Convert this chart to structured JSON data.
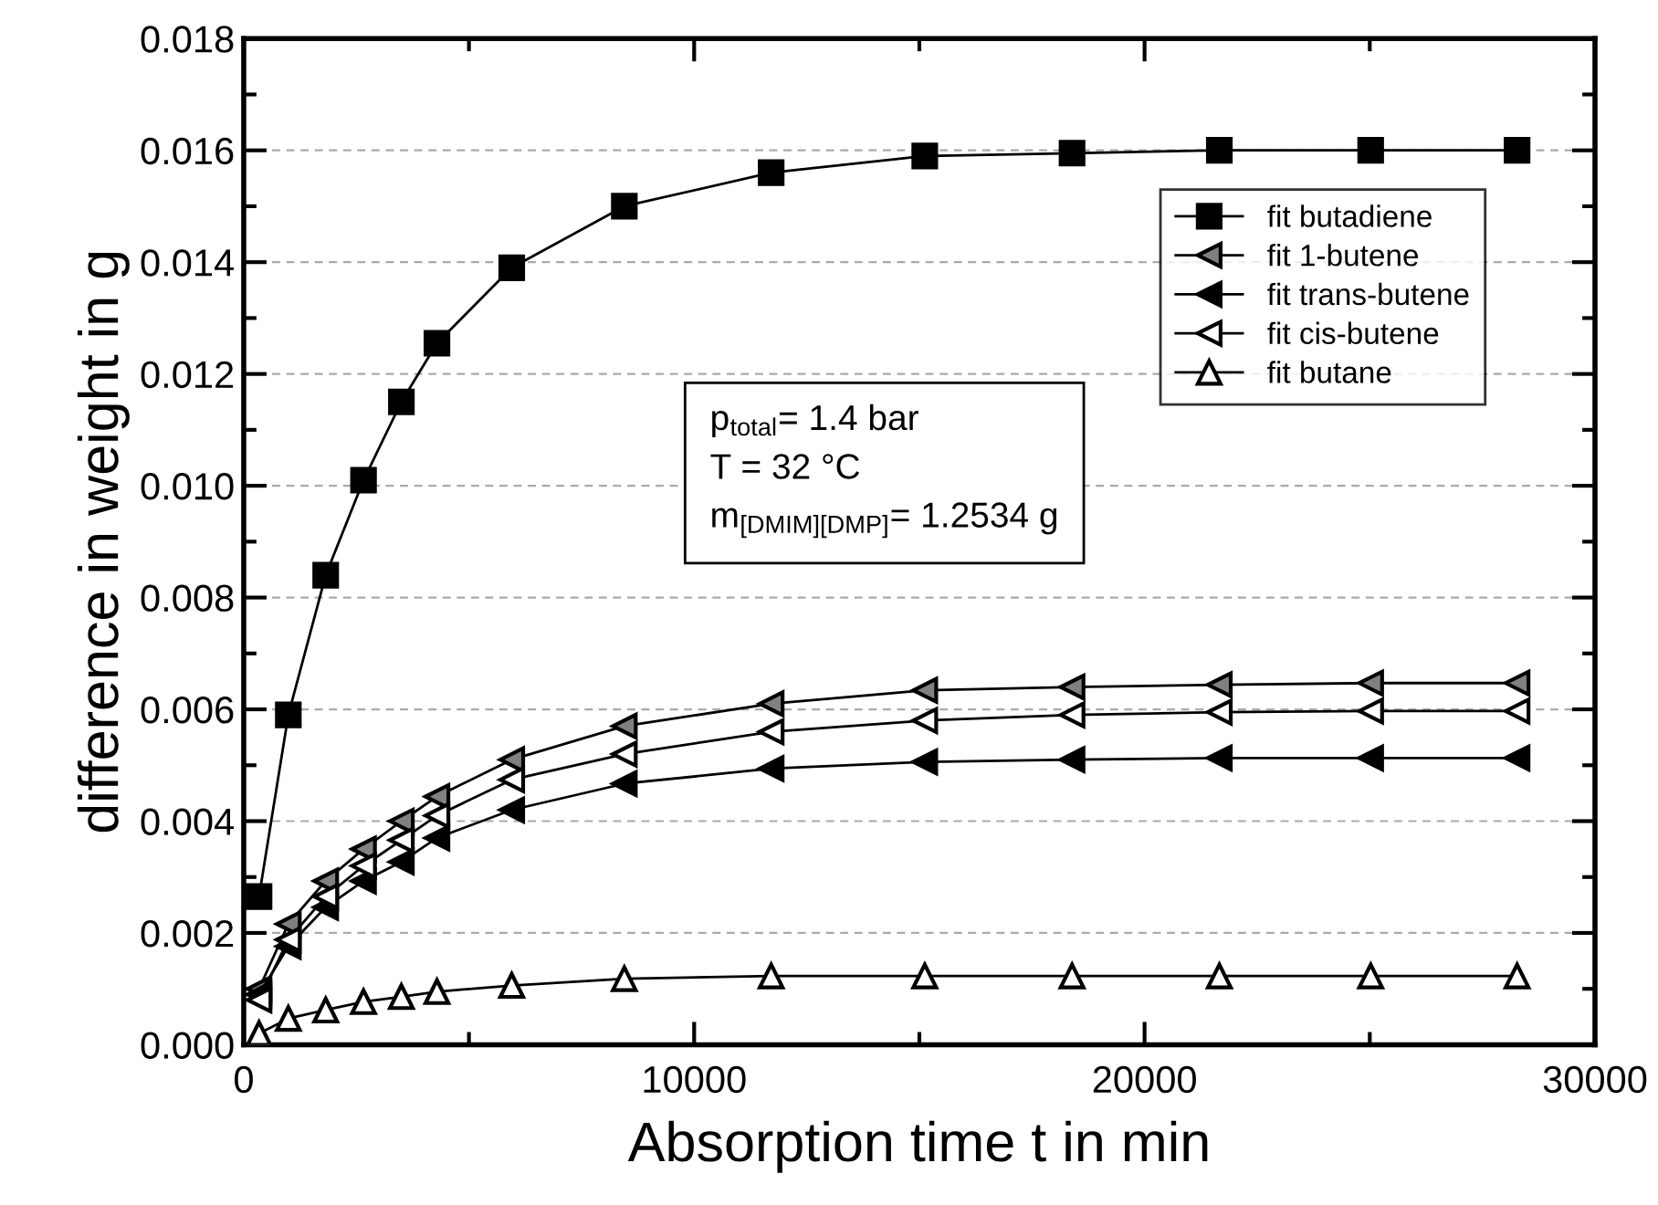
{
  "chart_data": {
    "type": "line",
    "xlabel": "Absorption time t in min",
    "ylabel": "difference in weight in g",
    "x": [
      340,
      990,
      1820,
      2660,
      3500,
      4290,
      5950,
      8450,
      11710,
      15120,
      18390,
      21660,
      25020,
      28270
    ],
    "series": [
      {
        "name": "fit butadiene",
        "color": "#000000",
        "marker": "square",
        "values": [
          0.00265,
          0.0059,
          0.0084,
          0.0101,
          0.0115,
          0.01255,
          0.0139,
          0.015,
          0.0156,
          0.0159,
          0.01595,
          0.016,
          0.016,
          0.016
        ]
      },
      {
        "name": "fit 1-butene",
        "color": "#808080",
        "marker": "triangle-left",
        "values": [
          0.001,
          0.00216,
          0.00293,
          0.0035,
          0.004,
          0.00444,
          0.0051,
          0.0057,
          0.0061,
          0.00634,
          0.0064,
          0.00644,
          0.00647,
          0.00647
        ]
      },
      {
        "name": "fit trans-butene",
        "color": "#000000",
        "marker": "triangle-left",
        "values": [
          0.0009,
          0.00176,
          0.00246,
          0.00293,
          0.00327,
          0.0037,
          0.0042,
          0.00467,
          0.00494,
          0.00506,
          0.0051,
          0.00513,
          0.00513,
          0.00513
        ]
      },
      {
        "name": "fit cis-butene",
        "color": "#ffffff",
        "marker": "triangle-left",
        "values": [
          0.0008,
          0.00188,
          0.00265,
          0.0032,
          0.00366,
          0.0041,
          0.00474,
          0.0052,
          0.0056,
          0.0058,
          0.0059,
          0.00595,
          0.00597,
          0.00597
        ]
      },
      {
        "name": "fit butane",
        "color": "#ffffff",
        "marker": "triangle",
        "values": [
          0.0002,
          0.00047,
          0.00062,
          0.00077,
          0.00086,
          0.00095,
          0.00106,
          0.00118,
          0.00123,
          0.00123,
          0.00123,
          0.00123,
          0.00123,
          0.00123
        ]
      }
    ],
    "xlim": [
      0,
      30000
    ],
    "xticks": [
      0,
      10000,
      20000,
      30000
    ],
    "ylim": [
      0,
      0.018
    ],
    "yticks": [
      {
        "value": 0,
        "label": "0.000"
      },
      {
        "value": 0.002,
        "label": "0.002"
      },
      {
        "value": 0.004,
        "label": "0.004"
      },
      {
        "value": 0.006,
        "label": "0.006"
      },
      {
        "value": 0.008,
        "label": "0.008"
      },
      {
        "value": 0.01,
        "label": "0.010"
      },
      {
        "value": 0.012,
        "label": "0.012"
      },
      {
        "value": 0.014,
        "label": "0.014"
      },
      {
        "value": 0.016,
        "label": "0.016"
      },
      {
        "value": 0.018,
        "label": "0.018"
      }
    ],
    "grid": "y",
    "legend": "top right",
    "line_style": "solid",
    "annotations": [
      "p$_{total}$= 1.4 bar",
      "T = 32 °C",
      "m$_{[DMIM][DMP]}$= 1.2534 g"
    ]
  }
}
